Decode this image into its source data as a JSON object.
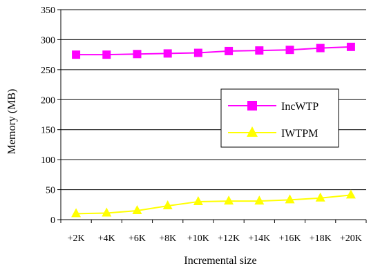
{
  "chart_data": {
    "type": "line",
    "title": "",
    "xlabel": "Incremental size",
    "ylabel": "Memory (MB)",
    "categories": [
      "+2K",
      "+4K",
      "+6K",
      "+8K",
      "+10K",
      "+12K",
      "+14K",
      "+16K",
      "+18K",
      "+20K"
    ],
    "ylim": [
      0,
      350
    ],
    "yticks": [
      "0",
      "50",
      "100",
      "150",
      "200",
      "250",
      "300",
      "350"
    ],
    "grid": "horizontal",
    "legend_position": "right-center",
    "series": [
      {
        "name": "IncWTP",
        "color": "#ff00ff",
        "marker": "square",
        "values": [
          275,
          275,
          276,
          277,
          278,
          281,
          282,
          283,
          286,
          288
        ]
      },
      {
        "name": "IWTPM",
        "color": "#ffff00",
        "marker": "triangle",
        "values": [
          10,
          11,
          15,
          23,
          30,
          31,
          31,
          33,
          36,
          41
        ]
      }
    ]
  }
}
